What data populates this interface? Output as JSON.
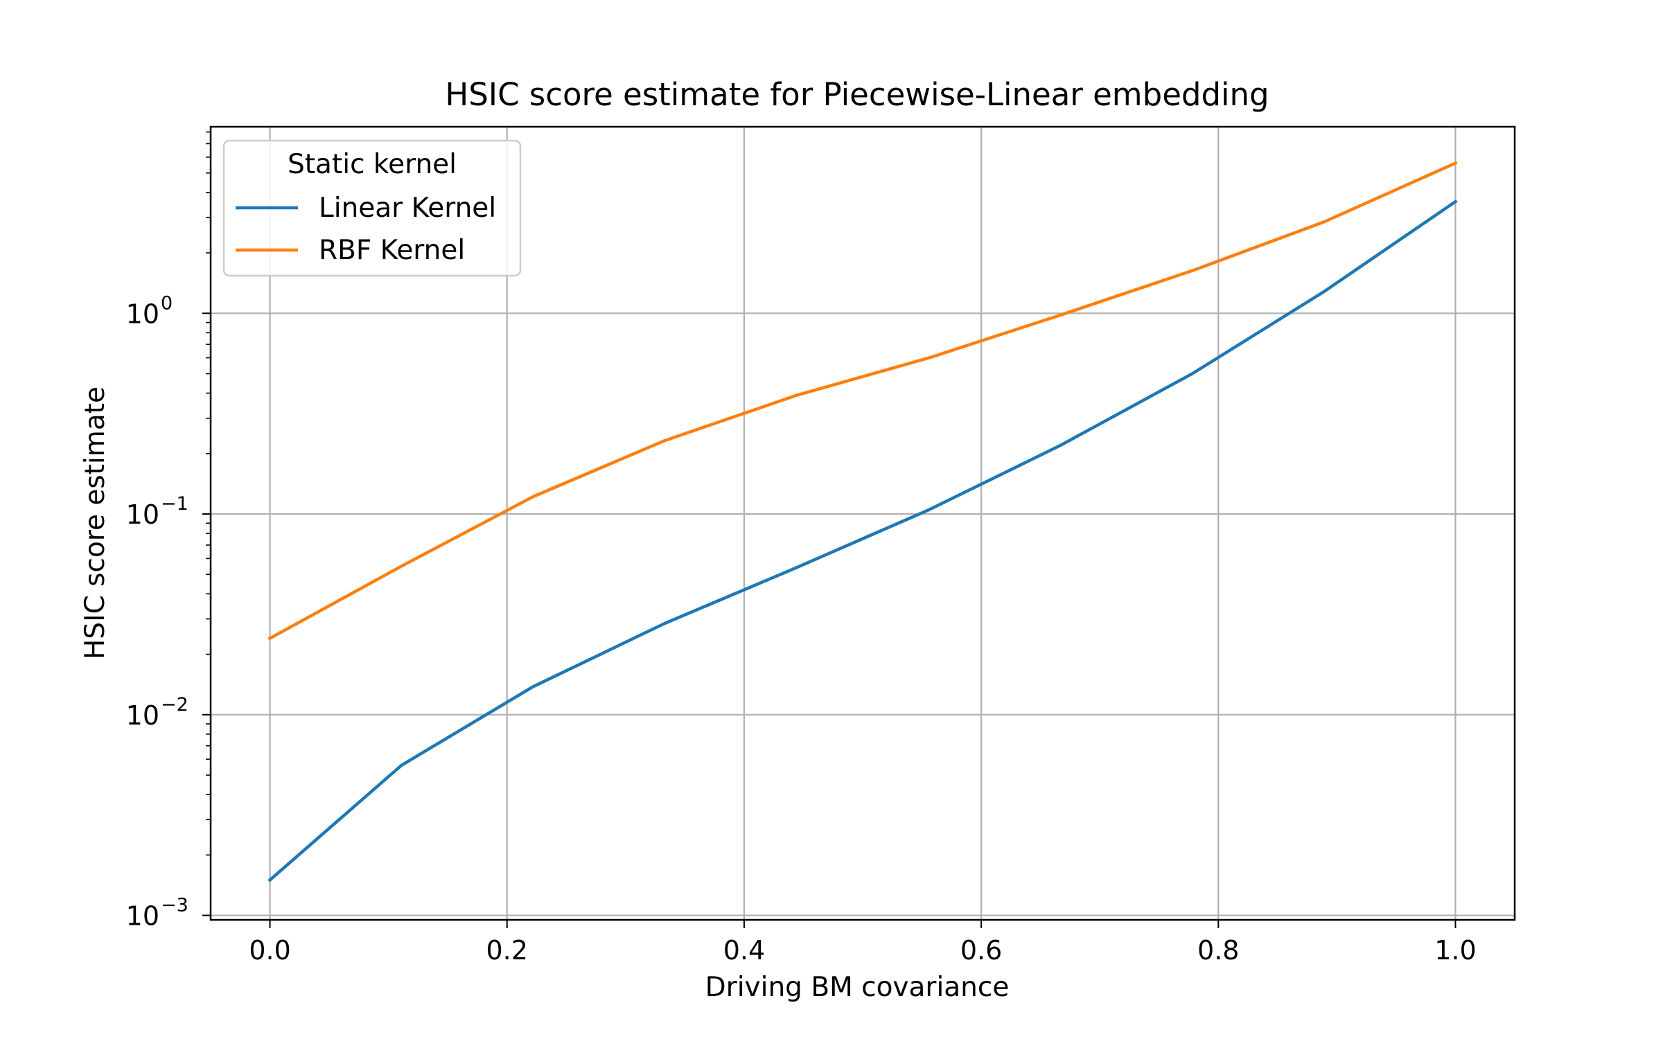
{
  "chart_data": {
    "type": "line",
    "title": "HSIC score estimate for Piecewise-Linear embedding",
    "xlabel": "Driving BM covariance",
    "ylabel": "HSIC score estimate",
    "xlim": [
      -0.05,
      1.05
    ],
    "ylim": [
      0.00095,
      8.5
    ],
    "yscale": "log",
    "grid": true,
    "legend": {
      "title": "Static kernel",
      "placement": "upper left"
    },
    "x_ticks": [
      "0.0",
      "0.2",
      "0.4",
      "0.6",
      "0.8",
      "1.0"
    ],
    "x_tick_values": [
      0.0,
      0.2,
      0.4,
      0.6,
      0.8,
      1.0
    ],
    "y_ticks": [
      {
        "value": 1,
        "base": "10",
        "exp": "0"
      },
      {
        "value": 0.1,
        "base": "10",
        "exp": "−1"
      },
      {
        "value": 0.01,
        "base": "10",
        "exp": "−2"
      },
      {
        "value": 0.001,
        "base": "10",
        "exp": "−3"
      }
    ],
    "x": [
      0.0,
      0.111,
      0.222,
      0.333,
      0.444,
      0.556,
      0.667,
      0.778,
      0.889,
      1.0
    ],
    "series": [
      {
        "name": "Linear Kernel",
        "color": "#1f77b4",
        "values": [
          0.0015,
          0.0056,
          0.0138,
          0.0285,
          0.054,
          0.105,
          0.22,
          0.5,
          1.28,
          3.6
        ]
      },
      {
        "name": "RBF Kernel",
        "color": "#ff7f0e",
        "values": [
          0.024,
          0.055,
          0.122,
          0.232,
          0.39,
          0.6,
          0.98,
          1.63,
          2.85,
          5.6
        ]
      }
    ]
  }
}
